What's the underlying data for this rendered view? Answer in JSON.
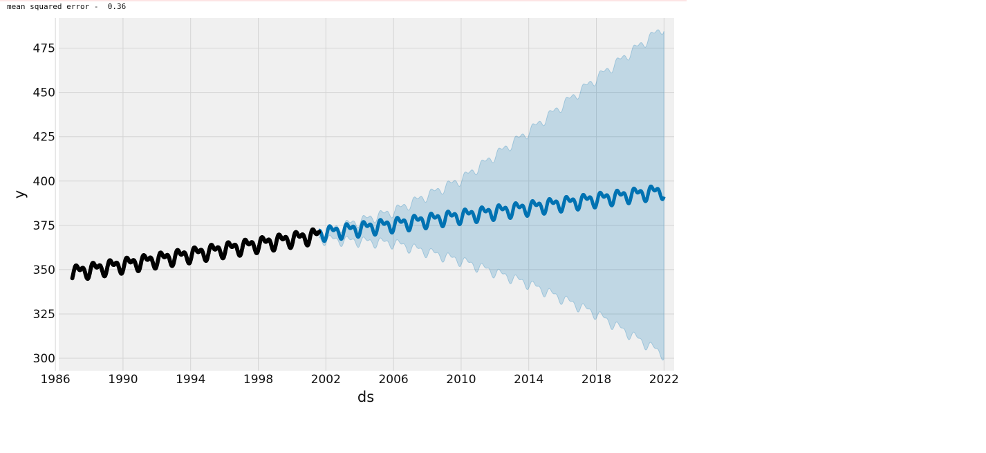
{
  "output": {
    "mse_label": "mean squared error -",
    "mse_value": "0.36"
  },
  "chart_data": {
    "type": "line",
    "title": "",
    "xlabel": "ds",
    "ylabel": "y",
    "xlim": [
      1986.2,
      2022.6
    ],
    "ylim": [
      293,
      492
    ],
    "x_ticks": [
      "1986",
      "1990",
      "1994",
      "1998",
      "2002",
      "2006",
      "2010",
      "2014",
      "2018",
      "2022"
    ],
    "y_ticks": [
      "300",
      "325",
      "350",
      "375",
      "400",
      "425",
      "450",
      "475"
    ],
    "grid": true,
    "history": {
      "start": 1987.0,
      "end": 2001.6,
      "base": 348.5,
      "slope": 1.45,
      "amplitude": 3.0
    },
    "forecast": {
      "start": 2001.6,
      "end": 2022.0,
      "base": 370.5,
      "slope": 1.18,
      "amplitude": 2.9
    },
    "uncertainty": {
      "upper": {
        "2002": 372,
        "2006": 383,
        "2010": 401,
        "2014": 428,
        "2018": 458,
        "2022": 487
      },
      "lower": {
        "2002": 367,
        "2006": 365,
        "2010": 355,
        "2014": 342,
        "2018": 325,
        "2022": 302
      }
    },
    "colors": {
      "history": "#000000",
      "forecast": "#0072b2",
      "interval": "#0072b2",
      "background": "#f0f0f0",
      "grid": "#d4d4d4"
    }
  }
}
